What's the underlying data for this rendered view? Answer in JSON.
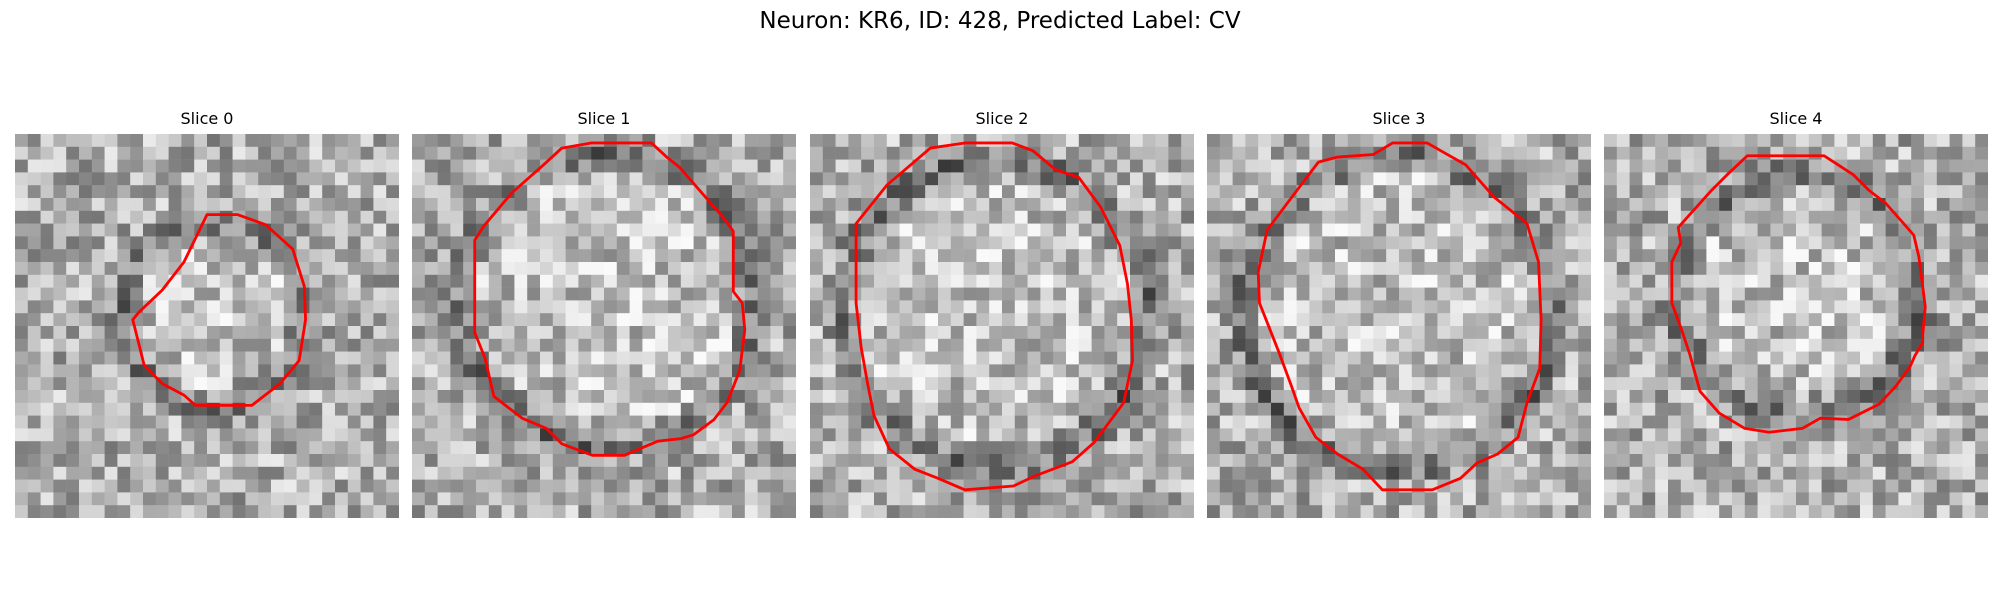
{
  "figure": {
    "title": "Neuron: KR6, ID: 428, Predicted Label: CV"
  },
  "contour_color": "#ff0000",
  "panels": [
    {
      "title": "Slice 0"
    },
    {
      "title": "Slice 1"
    },
    {
      "title": "Slice 2"
    },
    {
      "title": "Slice 3"
    },
    {
      "title": "Slice 4"
    }
  ]
}
